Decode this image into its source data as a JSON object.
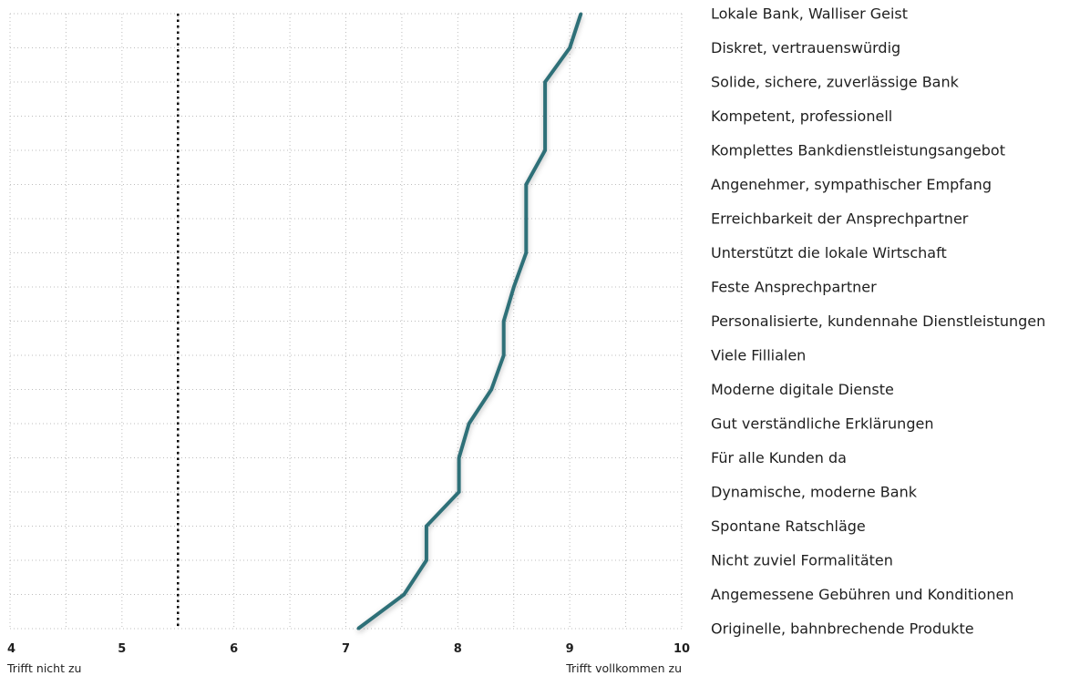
{
  "chart_data": {
    "type": "line",
    "orientation": "horizontal",
    "xlim": [
      4,
      10
    ],
    "x_ticks": [
      "4",
      "5",
      "6",
      "7",
      "8",
      "9",
      "10"
    ],
    "x_end_labels": {
      "left": "Trifft nicht zu",
      "right": "Trifft vollkommen zu"
    },
    "grid": true,
    "grid_style": "dotted",
    "reference_line": {
      "x": 5.5,
      "style": "dotted",
      "color": "#000000"
    },
    "series": [
      {
        "color": "#2e6f78",
        "points": [
          {
            "label": "Lokale Bank,  Walliser Geist",
            "value": 9.1
          },
          {
            "label": "Diskret, vertrauenswürdig",
            "value": 9.0
          },
          {
            "label": "Solide, sichere, zuverlässige Bank",
            "value": 8.78
          },
          {
            "label": "Kompetent, professionell",
            "value": 8.78
          },
          {
            "label": "Komplettes Bankdienstleistungsangebot",
            "value": 8.78
          },
          {
            "label": "Angenehmer, sympathischer Empfang",
            "value": 8.61
          },
          {
            "label": "Erreichbarkeit der Ansprechpartner",
            "value": 8.61
          },
          {
            "label": "Unterstützt die lokale Wirtschaft",
            "value": 8.61
          },
          {
            "label": "Feste Ansprechpartner",
            "value": 8.5
          },
          {
            "label": "Personalisierte, kundennahe Dienstleistungen",
            "value": 8.41
          },
          {
            "label": "Viele Fillialen",
            "value": 8.41
          },
          {
            "label": "Moderne digitale Dienste",
            "value": 8.3
          },
          {
            "label": "Gut verständliche Erklärungen",
            "value": 8.1
          },
          {
            "label": "Für alle Kunden da",
            "value": 8.01
          },
          {
            "label": "Dynamische, moderne Bank",
            "value": 8.01
          },
          {
            "label": "Spontane Ratschläge",
            "value": 7.72
          },
          {
            "label": "Nicht zuviel Formalitäten",
            "value": 7.72
          },
          {
            "label": "Angemessene Gebühren und Konditionen",
            "value": 7.52
          },
          {
            "label": "Originelle, bahnbrechende Produkte",
            "value": 7.11
          }
        ]
      }
    ]
  }
}
